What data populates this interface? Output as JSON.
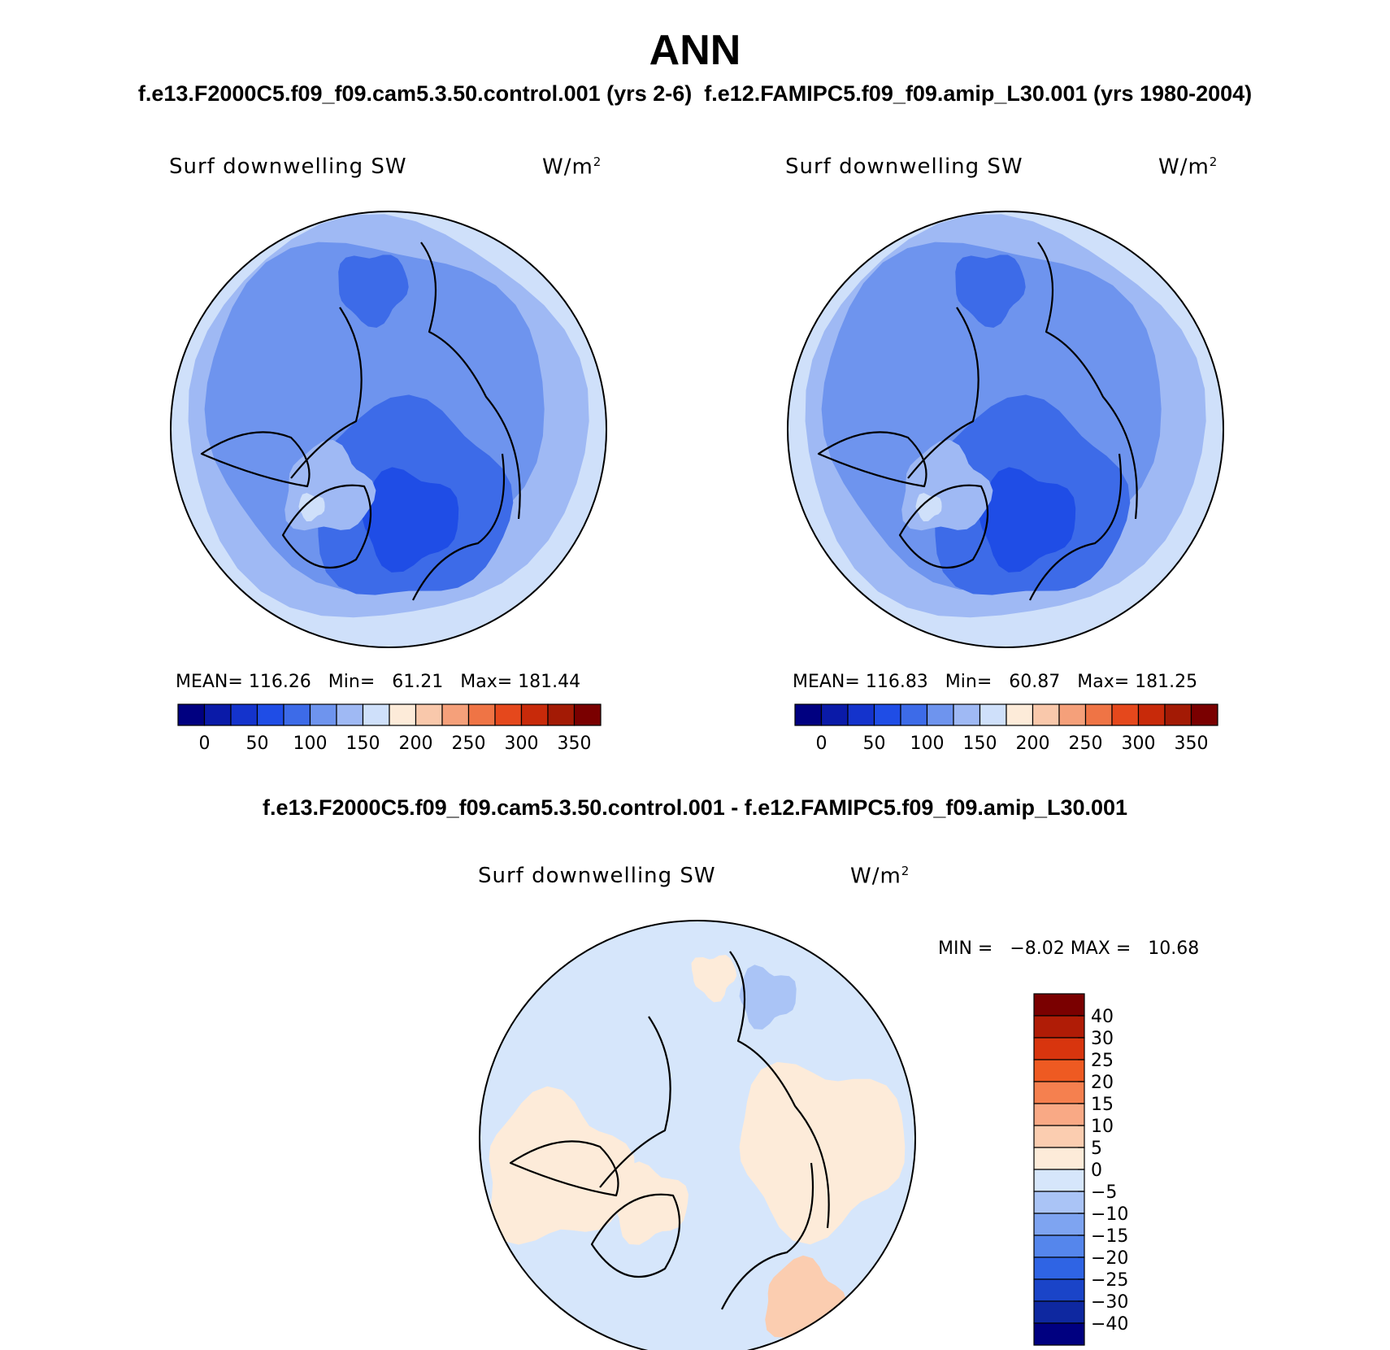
{
  "figure": {
    "title": "ANN",
    "subtitle_left": "f.e13.F2000C5.f09_f09.cam5.3.50.control.001 (yrs 2-6)",
    "subtitle_right": "f.e12.FAMIPC5.f09_f09.amip_L30.001 (yrs 1980-2004)",
    "diff_title": "f.e13.F2000C5.f09_f09.cam5.3.50.control.001 - f.e12.FAMIPC5.f09_f09.amip_L30.001"
  },
  "chart_data": [
    {
      "type": "heatmap",
      "projection": "north polar stereographic",
      "variable": "Surf downwelling SW",
      "units": "W/m",
      "units_exp": "2",
      "stats": {
        "mean_label": "MEAN=",
        "mean": "116.26",
        "min_label": "Min=",
        "min": "61.21",
        "max_label": "Max=",
        "max": "181.44"
      },
      "colorbar": {
        "orientation": "horizontal",
        "levels": [
          0,
          25,
          50,
          75,
          100,
          125,
          150,
          175,
          200,
          225,
          250,
          275,
          300,
          325,
          350
        ],
        "tick_labels": [
          "0",
          "50",
          "100",
          "150",
          "200",
          "250",
          "300",
          "350"
        ],
        "colors": [
          "#000080",
          "#0a1aa8",
          "#1433cc",
          "#1f4de6",
          "#3d6be8",
          "#6e94ee",
          "#9fb9f4",
          "#cfe0fa",
          "#fdebd9",
          "#f9c8ab",
          "#f5a07a",
          "#ef7445",
          "#e5481c",
          "#c82a0a",
          "#a31a05",
          "#7a0000"
        ]
      }
    },
    {
      "type": "heatmap",
      "projection": "north polar stereographic",
      "variable": "Surf downwelling SW",
      "units": "W/m",
      "units_exp": "2",
      "stats": {
        "mean_label": "MEAN=",
        "mean": "116.83",
        "min_label": "Min=",
        "min": "60.87",
        "max_label": "Max=",
        "max": "181.25"
      },
      "colorbar": {
        "orientation": "horizontal",
        "levels": [
          0,
          25,
          50,
          75,
          100,
          125,
          150,
          175,
          200,
          225,
          250,
          275,
          300,
          325,
          350
        ],
        "tick_labels": [
          "0",
          "50",
          "100",
          "150",
          "200",
          "250",
          "300",
          "350"
        ],
        "colors": [
          "#000080",
          "#0a1aa8",
          "#1433cc",
          "#1f4de6",
          "#3d6be8",
          "#6e94ee",
          "#9fb9f4",
          "#cfe0fa",
          "#fdebd9",
          "#f9c8ab",
          "#f5a07a",
          "#ef7445",
          "#e5481c",
          "#c82a0a",
          "#a31a05",
          "#7a0000"
        ]
      }
    },
    {
      "type": "heatmap",
      "projection": "north polar stereographic",
      "variable": "Surf downwelling SW",
      "units": "W/m",
      "units_exp": "2",
      "stats": {
        "min_label": "MIN =",
        "min": "−8.02",
        "max_label": "MAX =",
        "max": "10.68"
      },
      "colorbar": {
        "orientation": "vertical",
        "levels": [
          -40,
          -30,
          -25,
          -20,
          -15,
          -10,
          -5,
          0,
          5,
          10,
          15,
          20,
          25,
          30,
          40
        ],
        "tick_labels": [
          "40",
          "30",
          "25",
          "20",
          "15",
          "10",
          "5",
          "0",
          "−5",
          "−10",
          "−15",
          "−20",
          "−25",
          "−30",
          "−40"
        ],
        "colors_top_to_bottom": [
          "#7a0000",
          "#b01c06",
          "#d8350e",
          "#ee5a22",
          "#f5804f",
          "#f9a985",
          "#fbcdb0",
          "#fdebd9",
          "#d6e6fb",
          "#aac4f6",
          "#7ea4f1",
          "#5586ec",
          "#2f64e4",
          "#1a44c8",
          "#0e28a0",
          "#000080"
        ]
      }
    }
  ]
}
